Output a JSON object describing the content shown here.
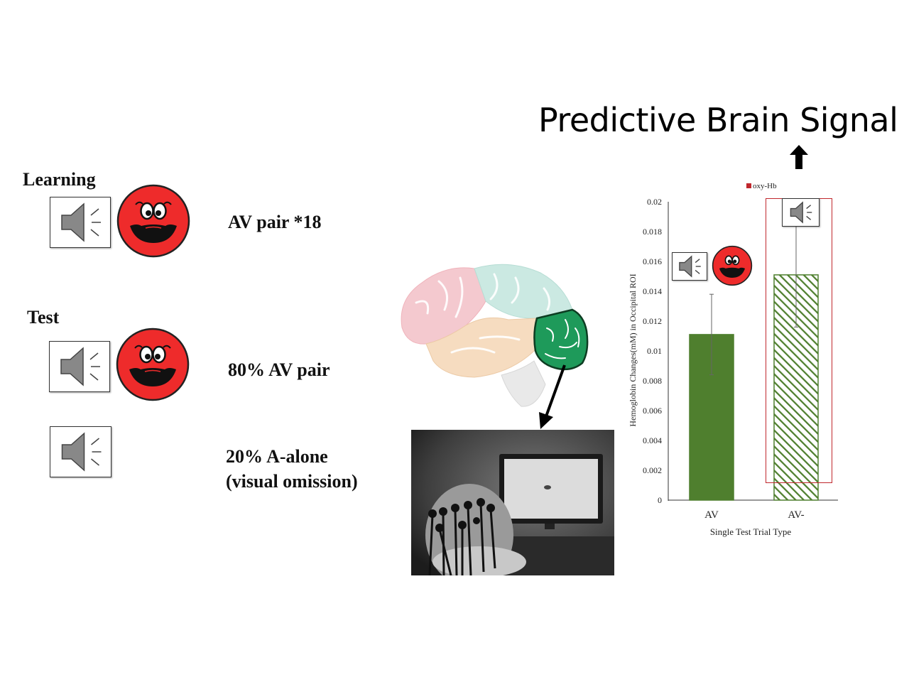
{
  "title": "Predictive Brain Signal",
  "learning": {
    "heading": "Learning",
    "condition": "AV pair *18"
  },
  "test": {
    "heading": "Test",
    "condition_av": "80% AV pair",
    "condition_a_line1": "20% A-alone",
    "condition_a_line2": "(visual omission)"
  },
  "icons": {
    "speaker": "speaker-icon",
    "face": "red-smiley-face-icon",
    "brain": "brain-occipital-highlight",
    "photo": "infant-fnirs-photo",
    "arrow": "arrow-icon"
  },
  "colors": {
    "face_red": "#ee2b2b",
    "occipital_green": "#1e9a5a",
    "bar_green": "#4f7f2e",
    "highlight_red": "#c0272d"
  },
  "chart_data": {
    "type": "bar",
    "categories": [
      "AV",
      "AV-"
    ],
    "series": [
      {
        "name": "oxy-Hb",
        "values": [
          0.0111,
          0.0151
        ],
        "error": [
          0.0027,
          0.0035
        ],
        "styles": [
          "solid",
          "hatched"
        ]
      }
    ],
    "xlabel": "Single Test Trial Type",
    "ylabel": "Hemoglobin Changes(mM) in Occipital ROI",
    "ylim": [
      0,
      0.02
    ],
    "yticks": [
      "0",
      "0.002",
      "0.004",
      "0.006",
      "0.008",
      "0.01",
      "0.012",
      "0.014",
      "0.016",
      "0.018",
      "0.02"
    ],
    "legend": "top",
    "grid": false
  }
}
